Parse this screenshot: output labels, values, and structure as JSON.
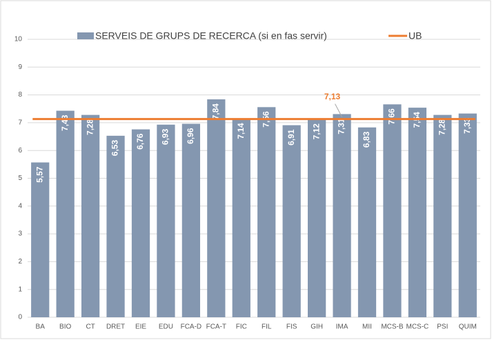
{
  "chart_data": {
    "type": "bar",
    "categories": [
      "BA",
      "BIO",
      "CT",
      "DRET",
      "EIE",
      "EDU",
      "FCA-D",
      "FCA-T",
      "FIC",
      "FIL",
      "FIS",
      "GIH",
      "IMA",
      "MII",
      "MCS-B",
      "MCS-C",
      "PSI",
      "QUIM"
    ],
    "series": [
      {
        "name": "SERVEIS DE GRUPS DE RECERCA (si en fas servir)",
        "color": "#8497b0",
        "values": [
          5.57,
          7.43,
          7.28,
          6.53,
          6.76,
          6.93,
          6.96,
          7.84,
          7.14,
          7.56,
          6.91,
          7.12,
          7.31,
          6.83,
          7.66,
          7.54,
          7.28,
          7.33
        ],
        "value_labels": [
          "5,57",
          "7,43",
          "7,28",
          "6,53",
          "6,76",
          "6,93",
          "6,96",
          "7,84",
          "7,14",
          "7,56",
          "6,91",
          "7,12",
          "7,31",
          "6,83",
          "7,66",
          "7,54",
          "7,28",
          "7,33"
        ]
      }
    ],
    "reference_line": {
      "name": "UB",
      "value": 7.13,
      "value_label": "7,13",
      "color": "#ed7d31"
    },
    "ylim": [
      0,
      10
    ],
    "yticks": [
      0,
      1,
      2,
      3,
      4,
      5,
      6,
      7,
      8,
      9,
      10
    ],
    "grid": true
  }
}
